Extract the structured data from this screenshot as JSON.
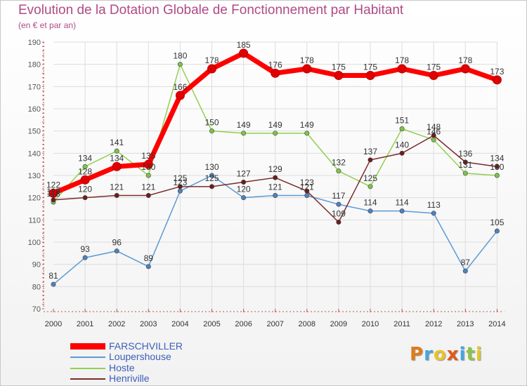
{
  "chart_data": {
    "type": "line",
    "title": "Evolution de la Dotation Globale de Fonctionnement par Habitant",
    "subtitle": "(en € et par an)",
    "xlabel": "",
    "ylabel": "",
    "ylim": [
      70,
      190
    ],
    "yticks": [
      "70",
      "80",
      "90",
      "100",
      "110",
      "120",
      "130",
      "140",
      "150",
      "160",
      "170",
      "180",
      "190"
    ],
    "categories": [
      "2000",
      "2001",
      "2002",
      "2003",
      "2004",
      "2005",
      "2006",
      "2007",
      "2008",
      "2009",
      "2010",
      "2011",
      "2012",
      "2013",
      "2014"
    ],
    "grid": true,
    "series": [
      {
        "name": "Loupershouse",
        "color": "#5b9bd5",
        "point_color": "#4f81bd",
        "values": [
          81,
          93,
          96,
          89,
          123,
          130,
          120,
          121,
          121,
          117,
          114,
          114,
          113,
          87,
          105
        ],
        "labels": [
          "81",
          "93",
          "96",
          "89",
          "123",
          "130",
          "120",
          "121",
          "121",
          "117",
          "114",
          "114",
          "113",
          "87",
          "105"
        ]
      },
      {
        "name": "Hoste",
        "color": "#92d050",
        "point_color": "#7cc447",
        "values": [
          118,
          134,
          141,
          130,
          180,
          150,
          149,
          149,
          149,
          132,
          125,
          151,
          146,
          131,
          130
        ],
        "labels": [
          "118",
          "134",
          "141",
          "130",
          "180",
          "150",
          "149",
          "149",
          "149",
          "132",
          "125",
          "151",
          "146",
          "131",
          "130"
        ]
      },
      {
        "name": "Henriville",
        "color": "#7b2c2c",
        "point_color": "#6b1e1e",
        "values": [
          119,
          120,
          121,
          121,
          125,
          125,
          127,
          129,
          123,
          109,
          137,
          140,
          148,
          136,
          134
        ],
        "labels": [
          "119",
          "120",
          "121",
          "121",
          "125",
          "125",
          "127",
          "129",
          "123",
          "109",
          "137",
          "140",
          "148",
          "136",
          "134"
        ]
      },
      {
        "name": "FARSCHVILLER",
        "color": "#ff0000",
        "point_color": "#e00000",
        "values": [
          122,
          128,
          134,
          135,
          166,
          178,
          185,
          176,
          178,
          175,
          175,
          178,
          175,
          178,
          173
        ],
        "labels": [
          "122",
          "128",
          "134",
          "135",
          "166",
          "178",
          "185",
          "176",
          "178",
          "175",
          "175",
          "178",
          "175",
          "178",
          "173"
        ]
      }
    ],
    "legend": {
      "placement": "bottom-left",
      "order": [
        "FARSCHVILLER",
        "Loupershouse",
        "Hoste",
        "Henriville"
      ]
    }
  },
  "brand": {
    "logo_letters": [
      "P",
      "r",
      "o",
      "x",
      "i",
      "t",
      "i"
    ],
    "logo_colors": [
      "#e07b1a",
      "#4aa3df",
      "#e8c32a",
      "#e05a1a",
      "#4aa3df",
      "#8bc34a",
      "#e8c32a"
    ]
  }
}
